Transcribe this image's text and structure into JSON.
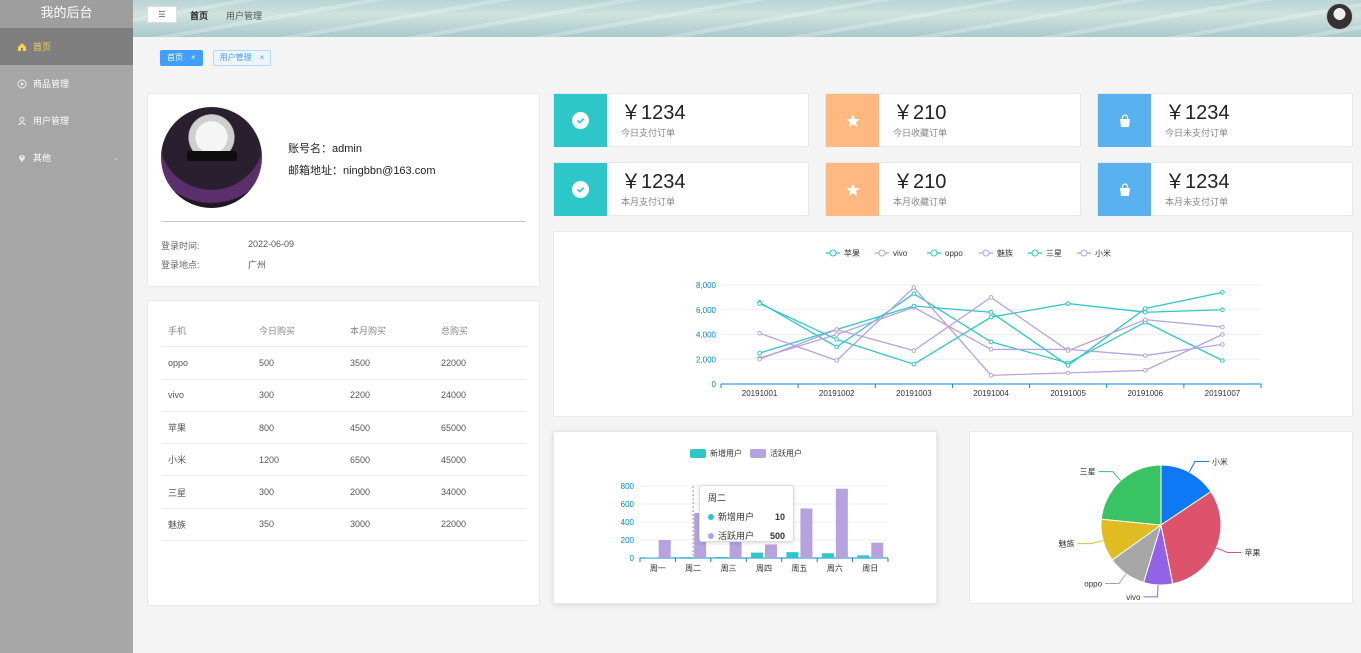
{
  "sidebar": {
    "brand": "我的后台",
    "items": [
      {
        "label": "首页",
        "icon": "home-icon",
        "active": true
      },
      {
        "label": "商品管理",
        "icon": "video-play-icon",
        "active": false
      },
      {
        "label": "用户管理",
        "icon": "user-icon",
        "active": false
      },
      {
        "label": "其他",
        "icon": "location-icon",
        "active": false,
        "submenu": true
      }
    ]
  },
  "topbar": {
    "toggle": "☰",
    "breadcrumb": [
      "首页",
      "用户管理"
    ]
  },
  "tags": [
    {
      "label": "首页",
      "active": true
    },
    {
      "label": "用户管理",
      "active": false
    }
  ],
  "user": {
    "name": "账号名：admin",
    "email": "邮箱地址：ningbbn@163.com",
    "login_time_label": "登录时间:",
    "login_time": "2022-06-09",
    "login_place_label": "登录地点:",
    "login_place": "广州"
  },
  "table": {
    "headers": [
      "手机",
      "今日购买",
      "本月购买",
      "总购买"
    ],
    "rows": [
      [
        "oppo",
        "500",
        "3500",
        "22000"
      ],
      [
        "vivo",
        "300",
        "2200",
        "24000"
      ],
      [
        "苹果",
        "800",
        "4500",
        "65000"
      ],
      [
        "小米",
        "1200",
        "6500",
        "45000"
      ],
      [
        "三星",
        "300",
        "2000",
        "34000"
      ],
      [
        "魅族",
        "350",
        "3000",
        "22000"
      ]
    ]
  },
  "stats": [
    {
      "value": "￥1234",
      "label": "今日支付订单",
      "icon": "success-icon",
      "color": "#2ec7c9"
    },
    {
      "value": "￥210",
      "label": "今日收藏订单",
      "icon": "star-icon",
      "color": "#ffb980"
    },
    {
      "value": "￥1234",
      "label": "今日未支付订单",
      "icon": "shopping-bag-icon",
      "color": "#5ab1ef"
    },
    {
      "value": "￥1234",
      "label": "本月支付订单",
      "icon": "success-icon",
      "color": "#2ec7c9"
    },
    {
      "value": "￥210",
      "label": "本月收藏订单",
      "icon": "star-icon",
      "color": "#ffb980"
    },
    {
      "value": "￥1234",
      "label": "本月未支付订单",
      "icon": "shopping-bag-icon",
      "color": "#5ab1ef"
    }
  ],
  "chart_data": [
    {
      "type": "line",
      "x": [
        "20191001",
        "20191002",
        "20191003",
        "20191004",
        "20191005",
        "20191006",
        "20191007"
      ],
      "ylim": [
        0,
        8000
      ],
      "yticks": [
        "0",
        "2,000",
        "4,000",
        "6,000",
        "8,000"
      ],
      "legend_position": "top",
      "series": [
        {
          "name": "苹果",
          "color": "#2ec7c9",
          "values": [
            6600,
            3000,
            7300,
            3400,
            1700,
            5000,
            1900
          ]
        },
        {
          "name": "vivo",
          "color": "#b6a2de",
          "values": [
            2100,
            4000,
            6200,
            2800,
            2800,
            2300,
            3200
          ]
        },
        {
          "name": "oppo",
          "color": "#2ec7c9",
          "values": [
            2500,
            4400,
            6300,
            5800,
            1500,
            6100,
            7400
          ]
        },
        {
          "name": "魅族",
          "color": "#b6a2de",
          "values": [
            4100,
            1900,
            7800,
            700,
            900,
            1100,
            4000
          ]
        },
        {
          "name": "三星",
          "color": "#2ec7c9",
          "values": [
            6500,
            3600,
            1600,
            5400,
            6500,
            5800,
            6000
          ]
        },
        {
          "name": "小米",
          "color": "#b6a2de",
          "values": [
            2000,
            4400,
            2700,
            7000,
            2700,
            5200,
            4600
          ]
        }
      ]
    },
    {
      "type": "bar",
      "categories": [
        "周一",
        "周二",
        "周三",
        "周四",
        "周五",
        "周六",
        "周日"
      ],
      "ylim": [
        0,
        800
      ],
      "yticks": [
        "0",
        "200",
        "400",
        "600",
        "800"
      ],
      "legend_position": "top",
      "series": [
        {
          "name": "新增用户",
          "color": "#2ec7c9",
          "values": [
            5,
            10,
            12,
            60,
            65,
            53,
            30
          ]
        },
        {
          "name": "活跃用户",
          "color": "#b6a2de",
          "values": [
            200,
            500,
            450,
            150,
            550,
            770,
            170
          ]
        }
      ],
      "tooltip": {
        "title": "周二",
        "rows": [
          [
            "新增用户",
            "10"
          ],
          [
            "活跃用户",
            "500"
          ]
        ]
      }
    },
    {
      "type": "pie",
      "slices": [
        {
          "name": "小米",
          "value": 2999,
          "color": "#0f78f4"
        },
        {
          "name": "苹果",
          "value": 5999,
          "color": "#dd536b"
        },
        {
          "name": "vivo",
          "value": 1500,
          "color": "#9462e5"
        },
        {
          "name": "oppo",
          "value": 1999,
          "color": "#a6a6a6"
        },
        {
          "name": "魅族",
          "value": 2200,
          "color": "#e1bb22"
        },
        {
          "name": "三星",
          "value": 4500,
          "color": "#39c362"
        }
      ]
    }
  ]
}
